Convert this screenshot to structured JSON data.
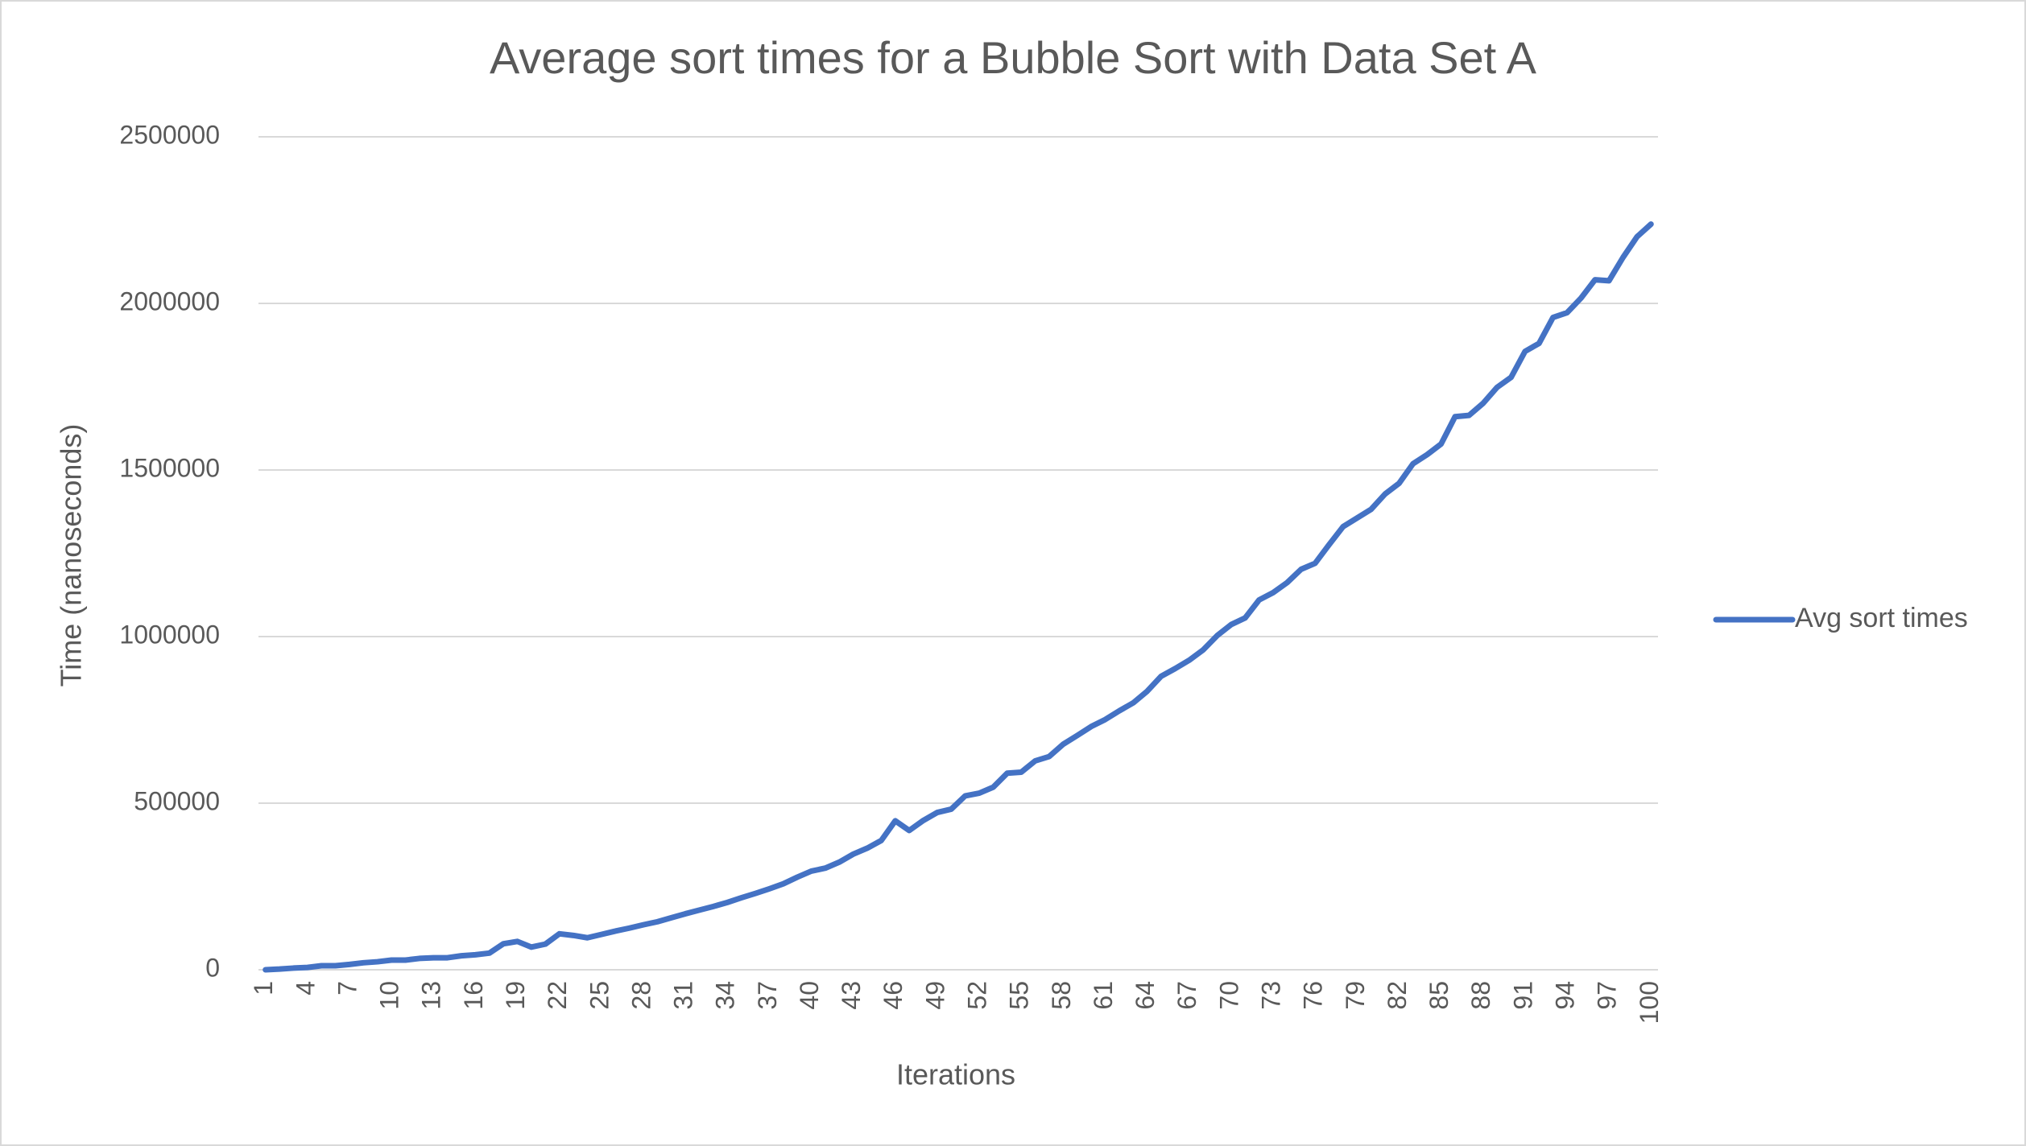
{
  "chart_data": {
    "type": "line",
    "title": "Average sort times for a Bubble Sort with Data Set A",
    "x_label": "Iterations",
    "y_label": "Time (nanoseconds)",
    "categories": [
      "1",
      null,
      null,
      "4",
      null,
      null,
      "7",
      null,
      null,
      "10",
      null,
      null,
      "13",
      null,
      null,
      "16",
      null,
      null,
      "19",
      null,
      null,
      "22",
      null,
      null,
      "25",
      null,
      null,
      "28",
      null,
      null,
      "31",
      null,
      null,
      "34",
      null,
      null,
      "37",
      null,
      null,
      "40",
      null,
      null,
      "43",
      null,
      null,
      "46",
      null,
      null,
      "49",
      null,
      null,
      "52",
      null,
      null,
      "55",
      null,
      null,
      "58",
      null,
      null,
      "61",
      null,
      null,
      "64",
      null,
      null,
      "67",
      null,
      null,
      "70",
      null,
      null,
      "73",
      null,
      null,
      "76",
      null,
      null,
      "79",
      null,
      null,
      "82",
      null,
      null,
      "85",
      null,
      null,
      "88",
      null,
      null,
      "91",
      null,
      null,
      "94",
      null,
      null,
      "97",
      null,
      null,
      "100"
    ],
    "series": [
      {
        "name": "Avg sort times",
        "color": "#4472c4",
        "values": [
          0,
          2000,
          5000,
          7000,
          12000,
          12000,
          16000,
          21000,
          24000,
          29000,
          29000,
          34000,
          36000,
          36000,
          42000,
          45000,
          50000,
          78000,
          85000,
          68000,
          77000,
          108000,
          103000,
          96000,
          106000,
          116000,
          125000,
          135000,
          144000,
          156000,
          168000,
          179000,
          190000,
          202000,
          216000,
          229000,
          243000,
          258000,
          278000,
          296000,
          305000,
          323000,
          347000,
          365000,
          388000,
          447000,
          418000,
          448000,
          472000,
          482000,
          522000,
          530000,
          548000,
          590000,
          593000,
          627000,
          640000,
          677000,
          703000,
          730000,
          751000,
          777000,
          801000,
          836000,
          881000,
          904000,
          929000,
          960000,
          1003000,
          1036000,
          1056000,
          1110000,
          1132000,
          1162000,
          1202000,
          1220000,
          1276000,
          1330000,
          1356000,
          1382000,
          1428000,
          1460000,
          1519000,
          1546000,
          1578000,
          1660000,
          1664000,
          1700000,
          1748000,
          1778000,
          1856000,
          1880000,
          1958000,
          1972000,
          2016000,
          2071000,
          2068000,
          2138000,
          2200000,
          2238000
        ]
      }
    ],
    "ylim": [
      0,
      2500000
    ],
    "yticks": [
      0,
      500000,
      1000000,
      1500000,
      2000000,
      2500000
    ],
    "grid": true,
    "legend": "right"
  }
}
